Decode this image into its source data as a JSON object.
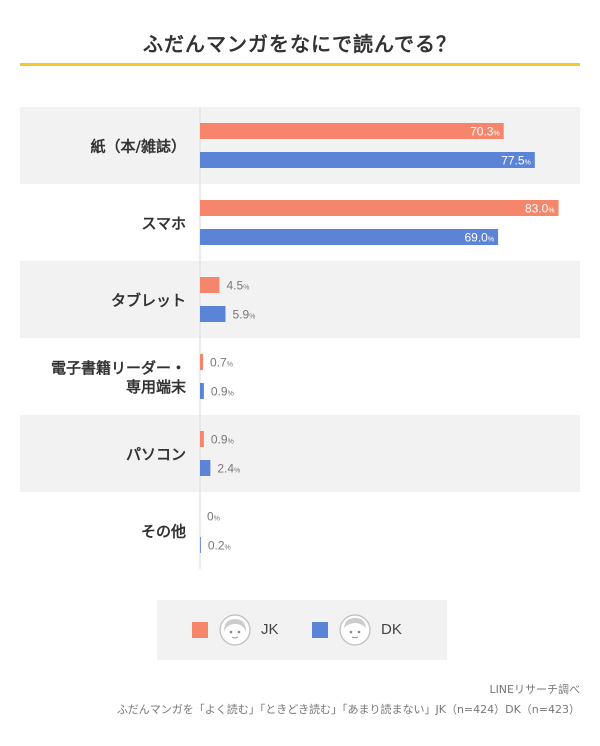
{
  "chart_data": {
    "type": "bar",
    "orientation": "horizontal",
    "title": "ふだんマンガをなにで読んでる？",
    "categories": [
      [
        "紙（本/雑誌）"
      ],
      [
        "スマホ"
      ],
      [
        "タブレット"
      ],
      [
        "電子書籍リーダー・",
        "専用端末"
      ],
      [
        "パソコン"
      ],
      [
        "その他"
      ]
    ],
    "series": [
      {
        "name": "JK",
        "values": [
          70.3,
          83.0,
          4.5,
          0.7,
          0.9,
          0
        ],
        "labels": [
          "70.3",
          "83.0",
          "4.5",
          "0.7",
          "0.9",
          "0"
        ],
        "color": "#f5866b"
      },
      {
        "name": "DK",
        "values": [
          77.5,
          69.0,
          5.9,
          0.9,
          2.4,
          0.2
        ],
        "labels": [
          "77.5",
          "69.0",
          "5.9",
          "0.9",
          "2.4",
          "0.2"
        ],
        "color": "#5b84d6"
      }
    ],
    "unit": "%",
    "xlim": [
      0,
      100
    ],
    "grid": false,
    "legend_position": "bottom-center"
  },
  "colors": {
    "accent_rule": "#f3c92c",
    "row_band": "#f2f2f2",
    "jk": "#f5866b",
    "dk": "#5b84d6"
  },
  "legend": {
    "jk_label": "JK",
    "dk_label": "DK",
    "jk_icon": "girl-face-icon",
    "dk_icon": "boy-face-icon"
  },
  "footer": {
    "source": "LINEリサーチ調べ",
    "note": "ふだんマンガを「よく読む」「ときどき読む」「あまり読まない」JK（n=424）DK（n=423）"
  }
}
